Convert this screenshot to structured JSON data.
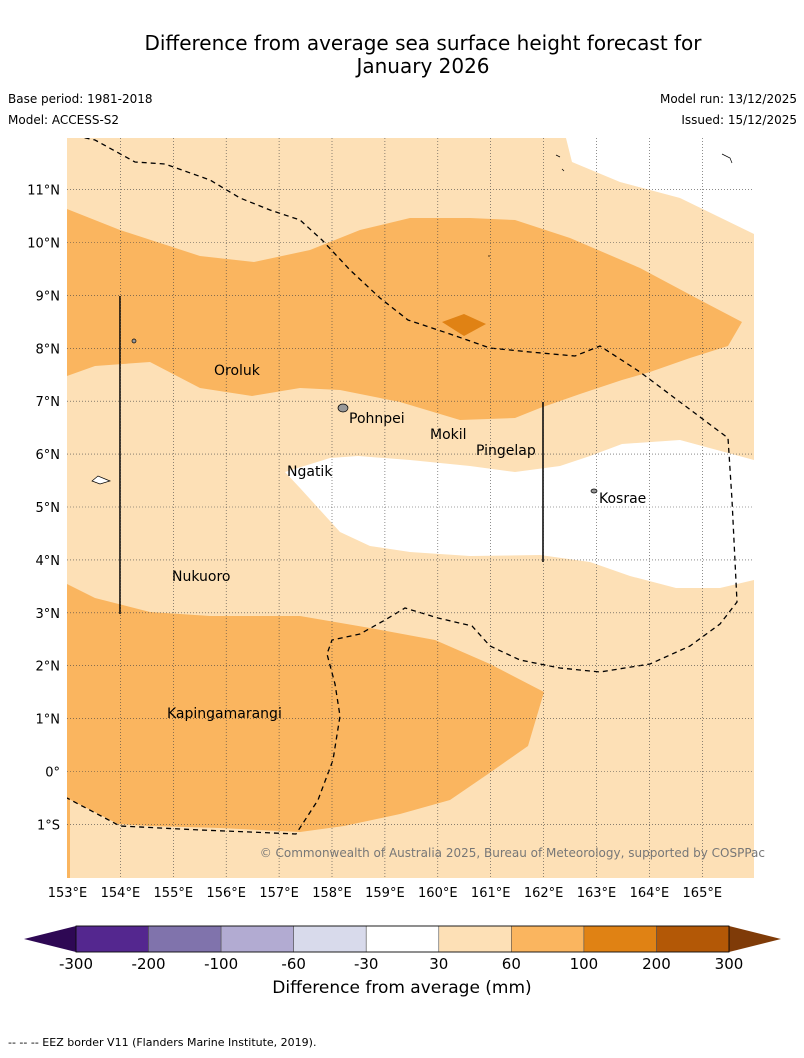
{
  "title_line1": "Difference from average sea surface height forecast for",
  "title_line2": "January 2026",
  "base_period": "Base period: 1981-2018",
  "model": "Model: ACCESS-S2",
  "model_run": "Model run: 13/12/2025",
  "issued": "Issued: 15/12/2025",
  "lat_labels": [
    "11°N",
    "10°N",
    "9°N",
    "8°N",
    "7°N",
    "6°N",
    "5°N",
    "4°N",
    "3°N",
    "2°N",
    "1°N",
    "0°",
    "1°S"
  ],
  "lon_labels": [
    "153°E",
    "154°E",
    "155°E",
    "156°E",
    "157°E",
    "158°E",
    "159°E",
    "160°E",
    "161°E",
    "162°E",
    "163°E",
    "164°E",
    "165°E"
  ],
  "places": [
    {
      "name": "Oroluk"
    },
    {
      "name": "Pohnpei"
    },
    {
      "name": "Mokil"
    },
    {
      "name": "Pingelap"
    },
    {
      "name": "Ngatik"
    },
    {
      "name": "Kosrae"
    },
    {
      "name": "Nukuoro"
    },
    {
      "name": "Kapingamarangi"
    }
  ],
  "copyright": "© Commonwealth of Australia 2025, Bureau of Meteorology, supported by COSPPac",
  "colorbar": {
    "ticks": [
      "-300",
      "-200",
      "-100",
      "-60",
      "-30",
      "30",
      "60",
      "100",
      "200",
      "300"
    ],
    "colors": [
      "#2e0854",
      "#54278f",
      "#8073ac",
      "#b2abd2",
      "#d8daeb",
      "#ffffff",
      "#fde0b6",
      "#fab55f",
      "#e08214",
      "#b35806",
      "#7f3b08"
    ],
    "title": "Difference from average (mm)"
  },
  "footer": "--  --  -- EEZ border V11 (Flanders Marine Institute, 2019)."
}
